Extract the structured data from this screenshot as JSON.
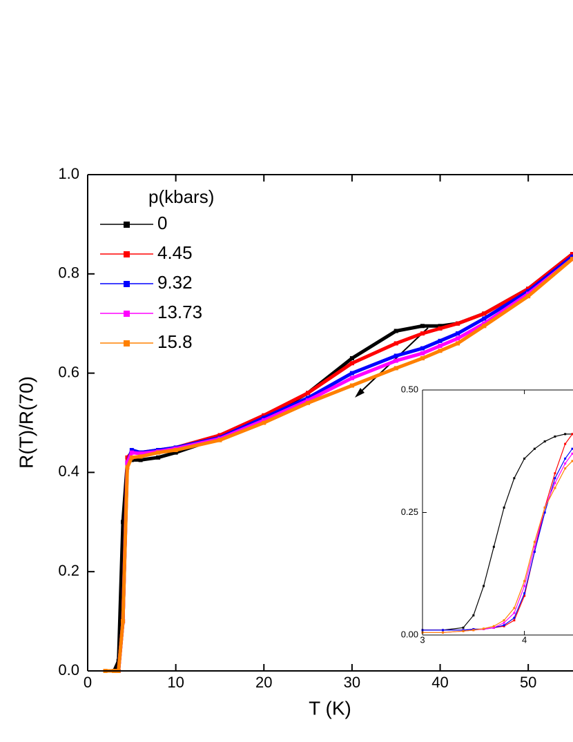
{
  "chart_data": [
    {
      "type": "line",
      "x_label": "T (K)",
      "y_label": "R(T)/R(70)",
      "legend_title": "p(kbars)",
      "x": [
        2,
        3,
        3.5,
        4,
        4.5,
        5,
        6,
        8,
        10,
        15,
        20,
        25,
        30,
        35,
        38,
        40,
        42,
        45,
        50,
        55
      ],
      "series": [
        {
          "name": "0",
          "color": "#000000",
          "values": [
            0,
            0,
            0.02,
            0.3,
            0.42,
            0.425,
            0.425,
            0.43,
            0.44,
            0.47,
            0.51,
            0.56,
            0.63,
            0.685,
            0.695,
            0.695,
            0.7,
            0.72,
            0.77,
            0.84
          ]
        },
        {
          "name": "4.45",
          "color": "#ff0000",
          "values": [
            0,
            0,
            0,
            0.1,
            0.43,
            0.44,
            0.44,
            0.445,
            0.45,
            0.475,
            0.515,
            0.56,
            0.62,
            0.66,
            0.68,
            0.69,
            0.7,
            0.72,
            0.77,
            0.84
          ]
        },
        {
          "name": "9.32",
          "color": "#0000ff",
          "values": [
            0,
            0,
            0,
            0.1,
            0.42,
            0.445,
            0.44,
            0.445,
            0.45,
            0.47,
            0.51,
            0.55,
            0.6,
            0.635,
            0.65,
            0.665,
            0.68,
            0.71,
            0.765,
            0.835
          ]
        },
        {
          "name": "13.73",
          "color": "#ff00ff",
          "values": [
            0,
            0,
            0,
            0.1,
            0.42,
            0.44,
            0.438,
            0.442,
            0.448,
            0.468,
            0.505,
            0.545,
            0.59,
            0.625,
            0.64,
            0.655,
            0.67,
            0.7,
            0.76,
            0.83
          ]
        },
        {
          "name": "15.8",
          "color": "#ff8000",
          "values": [
            0,
            0,
            0,
            0.1,
            0.41,
            0.43,
            0.432,
            0.44,
            0.445,
            0.465,
            0.5,
            0.54,
            0.575,
            0.61,
            0.63,
            0.645,
            0.66,
            0.695,
            0.755,
            0.83
          ]
        }
      ],
      "xlim": [
        0,
        55
      ],
      "xticks": [
        0,
        10,
        20,
        30,
        40,
        50
      ],
      "ylim": [
        0,
        1
      ],
      "yticks": [
        {
          "value": 0,
          "label": "0.0"
        },
        0.2,
        0.4,
        0.6,
        0.8,
        {
          "value": 1,
          "label": "1.0"
        }
      ]
    },
    {
      "type": "line",
      "x": [
        3,
        3.2,
        3.4,
        3.5,
        3.6,
        3.7,
        3.8,
        3.9,
        4.0,
        4.1,
        4.2,
        4.3,
        4.4,
        4.47
      ],
      "series": [
        {
          "color": "#000000",
          "values": [
            0.01,
            0.01,
            0.015,
            0.04,
            0.1,
            0.18,
            0.26,
            0.32,
            0.36,
            0.38,
            0.395,
            0.405,
            0.41,
            0.41
          ]
        },
        {
          "color": "#ff0000",
          "values": [
            0.01,
            0.01,
            0.01,
            0.012,
            0.012,
            0.015,
            0.018,
            0.03,
            0.08,
            0.17,
            0.26,
            0.33,
            0.39,
            0.41
          ]
        },
        {
          "color": "#0000ff",
          "values": [
            0.01,
            0.01,
            0.01,
            0.012,
            0.012,
            0.015,
            0.02,
            0.035,
            0.085,
            0.17,
            0.25,
            0.32,
            0.36,
            0.38
          ]
        },
        {
          "color": "#ff00ff",
          "values": [
            0.005,
            0.005,
            0.008,
            0.01,
            0.012,
            0.015,
            0.025,
            0.045,
            0.1,
            0.18,
            0.26,
            0.31,
            0.35,
            0.37
          ]
        },
        {
          "color": "#ff8000",
          "values": [
            0.005,
            0.005,
            0.008,
            0.01,
            0.013,
            0.018,
            0.03,
            0.055,
            0.11,
            0.19,
            0.26,
            0.3,
            0.34,
            0.355
          ]
        }
      ],
      "xlim": [
        3,
        4.47
      ],
      "xticks": [
        3,
        4
      ],
      "ylim": [
        0,
        0.5
      ],
      "yticks": [
        {
          "value": 0,
          "label": "0.00"
        },
        {
          "value": 0.25,
          "label": "0.25"
        },
        {
          "value": 0.5,
          "label": "0.50"
        }
      ]
    }
  ]
}
